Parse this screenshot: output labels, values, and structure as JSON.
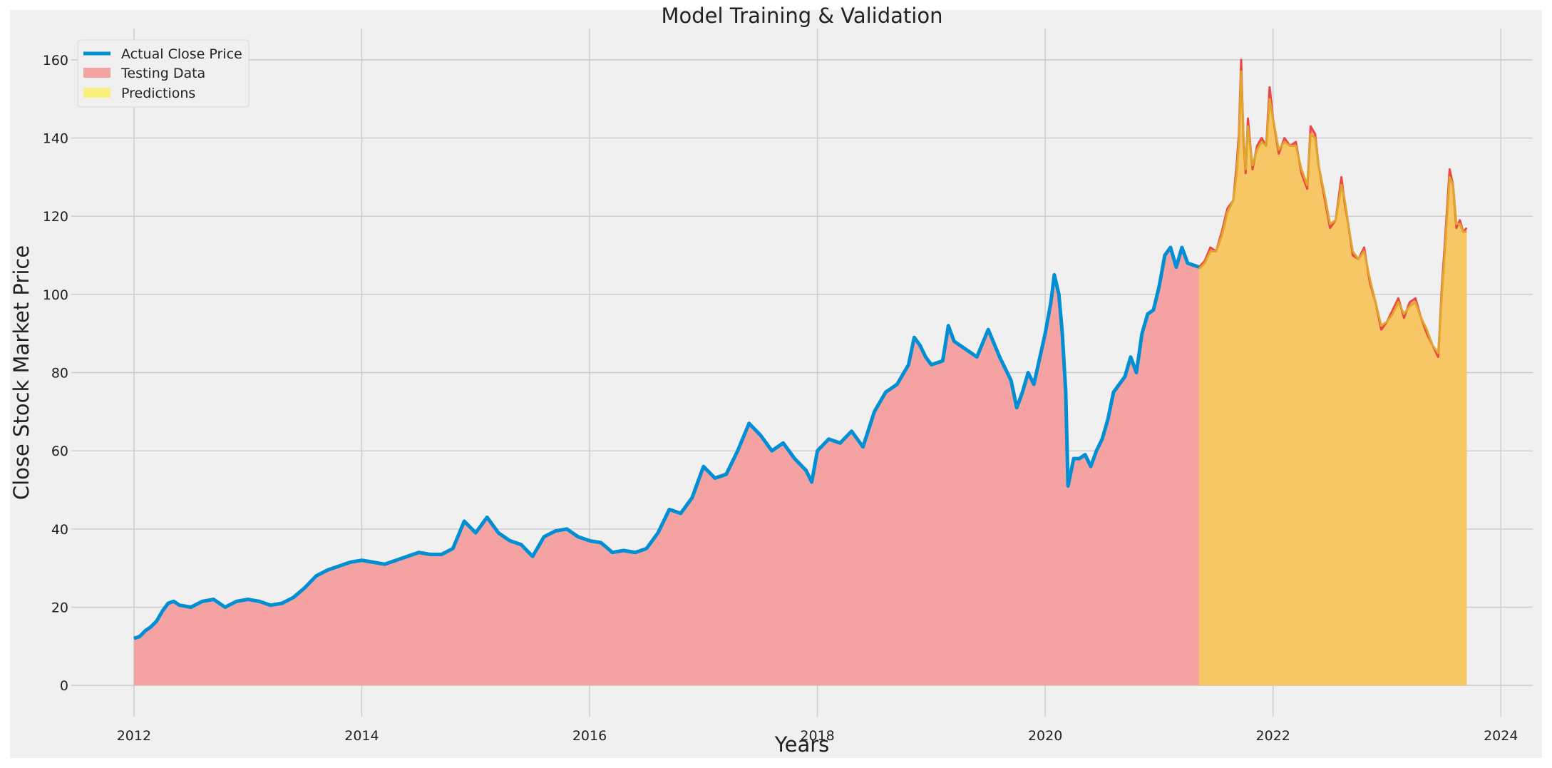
{
  "chart_data": {
    "type": "area",
    "title": "Model Training & Validation",
    "xlabel": "Years",
    "ylabel": "Close Stock Market Price",
    "xlim": [
      2011.45,
      2024.28
    ],
    "ylim": [
      -8,
      168
    ],
    "x_ticks": [
      2012,
      2014,
      2016,
      2018,
      2020,
      2022,
      2024
    ],
    "y_ticks": [
      0,
      20,
      40,
      60,
      80,
      100,
      120,
      140,
      160
    ],
    "grid": true,
    "legend_position": "top-left",
    "legend": [
      "Actual Close Price",
      "Testing Data",
      "Predictions"
    ],
    "colors": {
      "background": "#f0f0f0",
      "grid": "#cbcbcb",
      "actual": "#008fd5",
      "testing_fill": "#f4a2a2",
      "testing_line": "#ef4444",
      "predictions_fill": "#f7f07a",
      "overlap_fill": "#f7c765",
      "predictions_line": "#e0a52c"
    },
    "split_year": 2021.35,
    "series": [
      {
        "name": "Actual Close Price",
        "points": [
          [
            2012.0,
            12.0
          ],
          [
            2012.05,
            12.5
          ],
          [
            2012.1,
            14.0
          ],
          [
            2012.15,
            15.0
          ],
          [
            2012.2,
            16.5
          ],
          [
            2012.25,
            19.0
          ],
          [
            2012.3,
            21.0
          ],
          [
            2012.35,
            21.5
          ],
          [
            2012.4,
            20.5
          ],
          [
            2012.5,
            20.0
          ],
          [
            2012.6,
            21.5
          ],
          [
            2012.7,
            22.0
          ],
          [
            2012.8,
            20.0
          ],
          [
            2012.9,
            21.5
          ],
          [
            2013.0,
            22.0
          ],
          [
            2013.1,
            21.5
          ],
          [
            2013.2,
            20.5
          ],
          [
            2013.3,
            21.0
          ],
          [
            2013.4,
            22.5
          ],
          [
            2013.5,
            25.0
          ],
          [
            2013.6,
            28.0
          ],
          [
            2013.7,
            29.5
          ],
          [
            2013.8,
            30.5
          ],
          [
            2013.9,
            31.5
          ],
          [
            2014.0,
            32.0
          ],
          [
            2014.1,
            31.5
          ],
          [
            2014.2,
            31.0
          ],
          [
            2014.3,
            32.0
          ],
          [
            2014.4,
            33.0
          ],
          [
            2014.5,
            34.0
          ],
          [
            2014.6,
            33.5
          ],
          [
            2014.7,
            33.5
          ],
          [
            2014.8,
            35.0
          ],
          [
            2014.9,
            42.0
          ],
          [
            2015.0,
            39.0
          ],
          [
            2015.1,
            43.0
          ],
          [
            2015.2,
            39.0
          ],
          [
            2015.3,
            37.0
          ],
          [
            2015.4,
            36.0
          ],
          [
            2015.5,
            33.0
          ],
          [
            2015.6,
            38.0
          ],
          [
            2015.7,
            39.5
          ],
          [
            2015.8,
            40.0
          ],
          [
            2015.9,
            38.0
          ],
          [
            2016.0,
            37.0
          ],
          [
            2016.1,
            36.5
          ],
          [
            2016.2,
            34.0
          ],
          [
            2016.3,
            34.5
          ],
          [
            2016.4,
            34.0
          ],
          [
            2016.5,
            35.0
          ],
          [
            2016.6,
            39.0
          ],
          [
            2016.7,
            45.0
          ],
          [
            2016.8,
            44.0
          ],
          [
            2016.9,
            48.0
          ],
          [
            2017.0,
            56.0
          ],
          [
            2017.1,
            53.0
          ],
          [
            2017.2,
            54.0
          ],
          [
            2017.3,
            60.0
          ],
          [
            2017.4,
            67.0
          ],
          [
            2017.5,
            64.0
          ],
          [
            2017.6,
            60.0
          ],
          [
            2017.7,
            62.0
          ],
          [
            2017.8,
            58.0
          ],
          [
            2017.9,
            55.0
          ],
          [
            2017.95,
            52.0
          ],
          [
            2018.0,
            60.0
          ],
          [
            2018.1,
            63.0
          ],
          [
            2018.2,
            62.0
          ],
          [
            2018.3,
            65.0
          ],
          [
            2018.4,
            61.0
          ],
          [
            2018.5,
            70.0
          ],
          [
            2018.6,
            75.0
          ],
          [
            2018.7,
            77.0
          ],
          [
            2018.8,
            82.0
          ],
          [
            2018.85,
            89.0
          ],
          [
            2018.9,
            87.0
          ],
          [
            2018.95,
            84.0
          ],
          [
            2019.0,
            82.0
          ],
          [
            2019.1,
            83.0
          ],
          [
            2019.15,
            92.0
          ],
          [
            2019.2,
            88.0
          ],
          [
            2019.3,
            86.0
          ],
          [
            2019.4,
            84.0
          ],
          [
            2019.5,
            91.0
          ],
          [
            2019.6,
            84.0
          ],
          [
            2019.7,
            78.0
          ],
          [
            2019.75,
            71.0
          ],
          [
            2019.8,
            75.0
          ],
          [
            2019.85,
            80.0
          ],
          [
            2019.9,
            77.0
          ],
          [
            2020.0,
            90.0
          ],
          [
            2020.05,
            98.0
          ],
          [
            2020.08,
            105.0
          ],
          [
            2020.12,
            100.0
          ],
          [
            2020.15,
            90.0
          ],
          [
            2020.18,
            75.0
          ],
          [
            2020.2,
            51.0
          ],
          [
            2020.25,
            58.0
          ],
          [
            2020.3,
            58.0
          ],
          [
            2020.35,
            59.0
          ],
          [
            2020.4,
            56.0
          ],
          [
            2020.45,
            60.0
          ],
          [
            2020.5,
            63.0
          ],
          [
            2020.55,
            68.0
          ],
          [
            2020.6,
            75.0
          ],
          [
            2020.7,
            79.0
          ],
          [
            2020.75,
            84.0
          ],
          [
            2020.8,
            80.0
          ],
          [
            2020.85,
            90.0
          ],
          [
            2020.9,
            95.0
          ],
          [
            2020.95,
            96.0
          ],
          [
            2021.0,
            102.0
          ],
          [
            2021.05,
            110.0
          ],
          [
            2021.1,
            112.0
          ],
          [
            2021.15,
            107.0
          ],
          [
            2021.2,
            112.0
          ],
          [
            2021.25,
            108.0
          ],
          [
            2021.35,
            107.0
          ]
        ]
      },
      {
        "name": "Testing Data",
        "points": [
          [
            2021.35,
            107.0
          ],
          [
            2021.4,
            108.5
          ],
          [
            2021.45,
            112.0
          ],
          [
            2021.5,
            111.0
          ],
          [
            2021.55,
            116.0
          ],
          [
            2021.6,
            122.0
          ],
          [
            2021.65,
            124.0
          ],
          [
            2021.68,
            133.0
          ],
          [
            2021.7,
            141.0
          ],
          [
            2021.72,
            160.0
          ],
          [
            2021.74,
            140.0
          ],
          [
            2021.76,
            131.0
          ],
          [
            2021.78,
            145.0
          ],
          [
            2021.82,
            132.0
          ],
          [
            2021.86,
            138.0
          ],
          [
            2021.9,
            140.0
          ],
          [
            2021.94,
            138.0
          ],
          [
            2021.97,
            153.0
          ],
          [
            2022.0,
            145.0
          ],
          [
            2022.05,
            136.0
          ],
          [
            2022.1,
            140.0
          ],
          [
            2022.15,
            138.0
          ],
          [
            2022.2,
            139.0
          ],
          [
            2022.25,
            131.0
          ],
          [
            2022.3,
            127.0
          ],
          [
            2022.33,
            143.0
          ],
          [
            2022.37,
            141.0
          ],
          [
            2022.4,
            133.0
          ],
          [
            2022.45,
            125.0
          ],
          [
            2022.5,
            117.0
          ],
          [
            2022.55,
            119.0
          ],
          [
            2022.6,
            130.0
          ],
          [
            2022.63,
            123.0
          ],
          [
            2022.66,
            118.0
          ],
          [
            2022.7,
            110.0
          ],
          [
            2022.75,
            109.0
          ],
          [
            2022.8,
            112.0
          ],
          [
            2022.85,
            103.0
          ],
          [
            2022.9,
            98.0
          ],
          [
            2022.95,
            91.0
          ],
          [
            2023.0,
            93.0
          ],
          [
            2023.05,
            96.0
          ],
          [
            2023.1,
            99.0
          ],
          [
            2023.15,
            94.0
          ],
          [
            2023.2,
            98.0
          ],
          [
            2023.25,
            99.0
          ],
          [
            2023.3,
            94.0
          ],
          [
            2023.35,
            90.0
          ],
          [
            2023.4,
            87.0
          ],
          [
            2023.45,
            84.0
          ],
          [
            2023.48,
            101.0
          ],
          [
            2023.51,
            114.0
          ],
          [
            2023.55,
            132.0
          ],
          [
            2023.58,
            128.0
          ],
          [
            2023.61,
            117.0
          ],
          [
            2023.64,
            119.0
          ],
          [
            2023.67,
            116.0
          ],
          [
            2023.7,
            117.0
          ]
        ]
      },
      {
        "name": "Predictions",
        "points": [
          [
            2021.35,
            106.5
          ],
          [
            2021.4,
            108.0
          ],
          [
            2021.45,
            111.0
          ],
          [
            2021.5,
            111.0
          ],
          [
            2021.55,
            115.0
          ],
          [
            2021.6,
            121.0
          ],
          [
            2021.65,
            124.0
          ],
          [
            2021.68,
            131.0
          ],
          [
            2021.7,
            139.0
          ],
          [
            2021.72,
            157.0
          ],
          [
            2021.74,
            141.0
          ],
          [
            2021.76,
            132.0
          ],
          [
            2021.78,
            143.0
          ],
          [
            2021.82,
            133.0
          ],
          [
            2021.86,
            137.0
          ],
          [
            2021.9,
            139.0
          ],
          [
            2021.94,
            138.0
          ],
          [
            2021.97,
            150.0
          ],
          [
            2022.0,
            145.0
          ],
          [
            2022.05,
            137.0
          ],
          [
            2022.1,
            139.0
          ],
          [
            2022.15,
            138.0
          ],
          [
            2022.2,
            138.0
          ],
          [
            2022.25,
            132.0
          ],
          [
            2022.3,
            128.0
          ],
          [
            2022.33,
            141.0
          ],
          [
            2022.37,
            140.0
          ],
          [
            2022.4,
            133.0
          ],
          [
            2022.45,
            126.0
          ],
          [
            2022.5,
            118.0
          ],
          [
            2022.55,
            119.0
          ],
          [
            2022.6,
            128.0
          ],
          [
            2022.63,
            124.0
          ],
          [
            2022.66,
            118.0
          ],
          [
            2022.7,
            111.0
          ],
          [
            2022.75,
            109.0
          ],
          [
            2022.8,
            111.0
          ],
          [
            2022.85,
            104.0
          ],
          [
            2022.9,
            98.0
          ],
          [
            2022.95,
            92.0
          ],
          [
            2023.0,
            93.0
          ],
          [
            2023.05,
            95.0
          ],
          [
            2023.1,
            98.0
          ],
          [
            2023.15,
            95.0
          ],
          [
            2023.2,
            97.0
          ],
          [
            2023.25,
            98.0
          ],
          [
            2023.3,
            94.0
          ],
          [
            2023.35,
            91.0
          ],
          [
            2023.4,
            87.0
          ],
          [
            2023.45,
            85.0
          ],
          [
            2023.48,
            99.0
          ],
          [
            2023.51,
            112.0
          ],
          [
            2023.55,
            130.0
          ],
          [
            2023.58,
            128.0
          ],
          [
            2023.61,
            118.0
          ],
          [
            2023.64,
            118.0
          ],
          [
            2023.67,
            116.0
          ],
          [
            2023.7,
            116.0
          ]
        ]
      }
    ]
  }
}
